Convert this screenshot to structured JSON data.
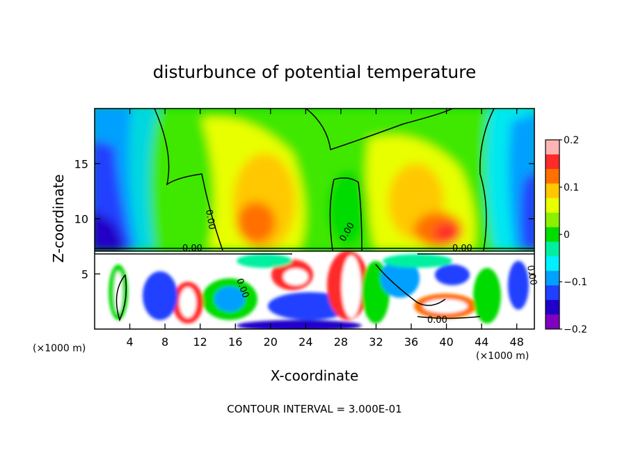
{
  "chart_data": {
    "type": "heatmap",
    "title": "disturbunce of potential temperature",
    "xlabel": "X-coordinate",
    "ylabel": "Z-coordinate",
    "x_unit_left": "(×1000 m)",
    "x_unit_right": "(×1000 m)",
    "xlim": [
      0,
      50
    ],
    "ylim": [
      0,
      20
    ],
    "x_ticks": [
      4,
      8,
      12,
      16,
      20,
      24,
      28,
      32,
      36,
      40,
      44,
      48
    ],
    "y_ticks": [
      5,
      10,
      15
    ],
    "colorbar": {
      "range": [
        -0.2,
        0.2
      ],
      "tick_labels": [
        "0.2",
        "0.1",
        "0",
        "−0.1",
        "−0.2"
      ],
      "tick_values": [
        0.2,
        0.1,
        0,
        -0.1,
        -0.2
      ],
      "colors": [
        "#ffb4b4",
        "#ff2a2a",
        "#ff7000",
        "#ffc800",
        "#e8ff00",
        "#8cf000",
        "#00dc00",
        "#00f0a0",
        "#00f0ff",
        "#00a0ff",
        "#2040ff",
        "#2000c8",
        "#8000c0"
      ]
    },
    "contour_labels": [
      "0.00",
      "0.00",
      "0.00",
      "0.00",
      "0.00",
      "0.00",
      "0.00"
    ],
    "footer": "CONTOUR INTERVAL = 3.000E-01"
  }
}
